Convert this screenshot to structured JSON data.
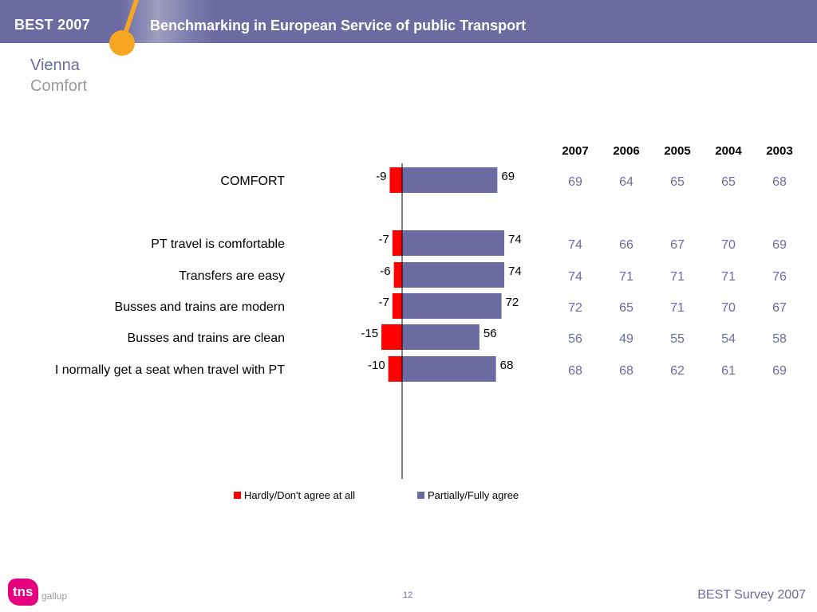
{
  "header": {
    "brand": "BEST 2007",
    "title": "Benchmarking in European Service of public Transport"
  },
  "slide": {
    "city": "Vienna",
    "topic": "Comfort"
  },
  "colors": {
    "header_bg": "#6b6ba1",
    "accent_orange": "#f6a623",
    "negative": "#ff0000",
    "positive": "#6b6ba1",
    "logo": "#e6007e"
  },
  "chart_data": {
    "type": "bar",
    "orientation": "horizontal-diverging",
    "categories": [
      "COMFORT",
      "PT travel is comfortable",
      "Transfers are easy",
      "Busses and trains are modern",
      "Busses and trains are clean",
      "I normally get a seat when travel with PT"
    ],
    "series": [
      {
        "name": "Hardly/Don't agree at all",
        "color": "#ff0000",
        "values": [
          -9,
          -7,
          -6,
          -7,
          -15,
          -10
        ]
      },
      {
        "name": "Partially/Fully agree",
        "color": "#6b6ba1",
        "values": [
          69,
          74,
          74,
          72,
          56,
          68
        ]
      }
    ],
    "legend": "bottom-center",
    "table": {
      "years": [
        "2007",
        "2006",
        "2005",
        "2004",
        "2003"
      ],
      "rows": [
        [
          "69",
          "64",
          "65",
          "65",
          "68"
        ],
        [
          "74",
          "66",
          "67",
          "70",
          "69"
        ],
        [
          "74",
          "71",
          "71",
          "71",
          "76"
        ],
        [
          "72",
          "65",
          "71",
          "70",
          "67"
        ],
        [
          "56",
          "49",
          "55",
          "54",
          "58"
        ],
        [
          "68",
          "68",
          "62",
          "61",
          "69"
        ]
      ]
    }
  },
  "footer": {
    "logo_text": "tns",
    "logo_sub": "gallup",
    "page_number": "12",
    "survey": "BEST Survey 2007"
  }
}
